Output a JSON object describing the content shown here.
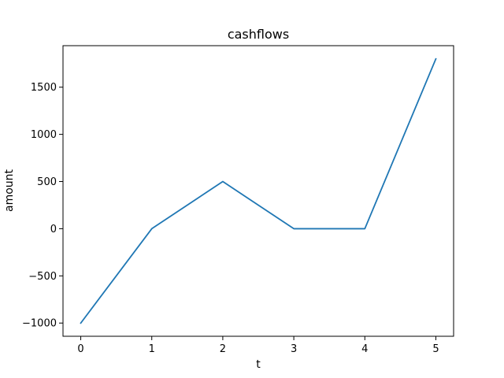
{
  "chart_data": {
    "type": "line",
    "title": "cashflows",
    "xlabel": "t",
    "ylabel": "amount",
    "x": [
      0,
      1,
      2,
      3,
      4,
      5
    ],
    "series": [
      {
        "values": [
          -1000,
          0,
          500,
          0,
          0,
          1800
        ],
        "color": "#1f77b4"
      }
    ],
    "xlim": [
      -0.25,
      5.25
    ],
    "ylim": [
      -1140,
      1940
    ],
    "xticks": [
      {
        "value": 0,
        "label": "0"
      },
      {
        "value": 1,
        "label": "1"
      },
      {
        "value": 2,
        "label": "2"
      },
      {
        "value": 3,
        "label": "3"
      },
      {
        "value": 4,
        "label": "4"
      },
      {
        "value": 5,
        "label": "5"
      }
    ],
    "yticks": [
      {
        "value": -1000,
        "label": "−1000"
      },
      {
        "value": -500,
        "label": "−500"
      },
      {
        "value": 0,
        "label": "0"
      },
      {
        "value": 500,
        "label": "500"
      },
      {
        "value": 1000,
        "label": "1000"
      },
      {
        "value": 1500,
        "label": "1500"
      }
    ],
    "grid": false,
    "legend": "none"
  }
}
